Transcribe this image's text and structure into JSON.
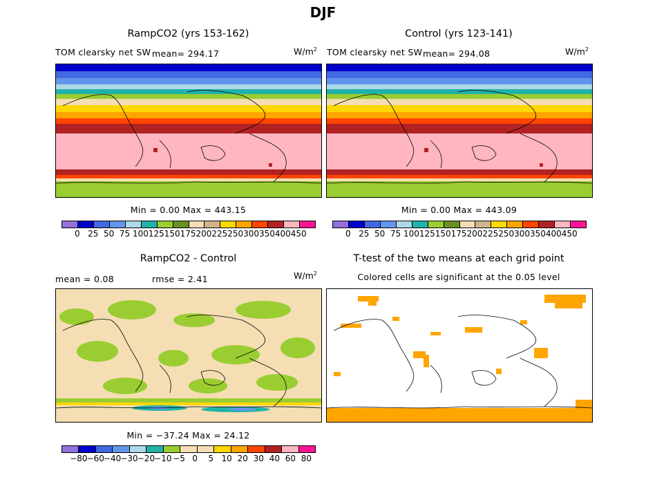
{
  "title": "DJF",
  "panels": {
    "ramp": {
      "title": "RampCO2 (yrs 153-162)",
      "variable": "TOM clearsky net SW",
      "mean": "mean= 294.17",
      "units": "W/m",
      "units_exp": "2",
      "stats": "Min =    0.00 Max = 443.15"
    },
    "control": {
      "title": "Control (yrs 123-141)",
      "variable": "TOM clearsky net SW",
      "mean": "mean= 294.08",
      "units": "W/m",
      "units_exp": "2",
      "stats": "Min =    0.00 Max = 443.09"
    },
    "diff": {
      "title": "RampCO2 - Control",
      "mean": "mean =    0.08",
      "rmse": "rmse =    2.41",
      "units": "W/m",
      "units_exp": "2",
      "stats": "Min = −37.24 Max =   24.12"
    },
    "ttest": {
      "title": "T-test of the two means at each grid point",
      "subtitle": "Colored cells are significant at the 0.05 level"
    }
  },
  "colorbars": {
    "field": {
      "colors": [
        "#9370db",
        "#0000cd",
        "#4169e1",
        "#6495ed",
        "#add8e6",
        "#20b2aa",
        "#9acd32",
        "#6b8e23",
        "#f5deb3",
        "#d2b48c",
        "#ffd700",
        "#ffa500",
        "#ff4500",
        "#b22222",
        "#ffb6c1",
        "#ff1493"
      ],
      "labels": [
        "0",
        "25",
        "50",
        "75",
        "100",
        "125",
        "150",
        "175",
        "200",
        "225",
        "250",
        "300",
        "350",
        "400",
        "450"
      ]
    },
    "diff": {
      "colors": [
        "#9370db",
        "#0000cd",
        "#4169e1",
        "#6495ed",
        "#add8e6",
        "#20b2aa",
        "#9acd32",
        "#f5deb3",
        "#f5deb3",
        "#ffd700",
        "#ffa500",
        "#ff4500",
        "#b22222",
        "#ffb6c1",
        "#ff1493"
      ],
      "labels": [
        "−80",
        "−60",
        "−40",
        "−30",
        "−20",
        "−10",
        "−5",
        "0",
        "5",
        "10",
        "20",
        "30",
        "40",
        "60",
        "80"
      ]
    }
  },
  "map_colors": {
    "significant": "#ffa500",
    "diff_background": "#f5deb3",
    "diff_green": "#9acd32"
  }
}
